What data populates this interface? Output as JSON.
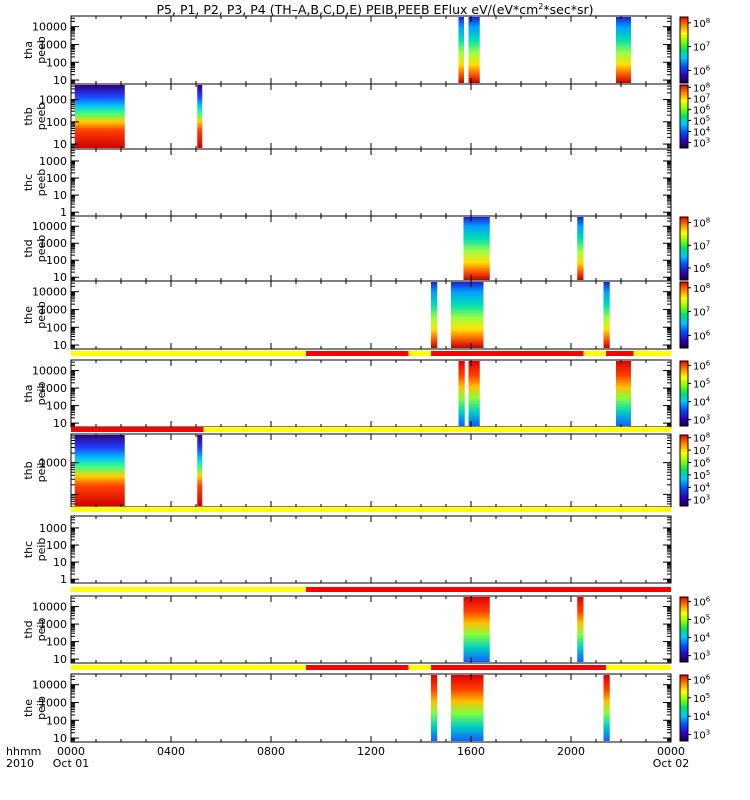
{
  "title": {
    "prefix": "P5, P1, P2, P3, P4 (TH–A,B,C,D,E) PEIB,PEEB EFlux eV/(eV*cm",
    "sup": "2",
    "suffix": "*sec*sr)"
  },
  "xaxis": {
    "left_label": "hhmm",
    "left_sub": "2010",
    "ticks": [
      "0000",
      "0400",
      "0800",
      "1200",
      "1600",
      "2000",
      "0000"
    ],
    "start_sub": "Oct 01",
    "end_sub": "Oct 02"
  },
  "colors": {
    "flag_normal": "#ffff00",
    "flag_alert": "#ff0000"
  },
  "chart_data": {
    "type": "heatmap",
    "x_unit": "hours since 2010-10-01 00:00",
    "xlim": [
      0,
      24
    ],
    "panels": [
      {
        "label1": "tha",
        "label2": "peeb",
        "yscale": "log",
        "ylim": [
          6,
          40000
        ],
        "yticks": [
          10,
          100,
          1000,
          10000
        ],
        "ytick_labels": [
          "10",
          "100",
          "1000",
          "10000"
        ],
        "colorbar": {
          "labels": [
            "10",
            "10",
            "10"
          ],
          "exps": [
            "8",
            "7",
            "6"
          ],
          "fracs": [
            0.1,
            0.45,
            0.8
          ]
        },
        "blocks": [
          [
            15.5,
            15.72,
            "e"
          ],
          [
            15.9,
            16.35,
            "e"
          ],
          [
            21.8,
            22.4,
            "e"
          ]
        ],
        "flag": null
      },
      {
        "label1": "thb",
        "label2": "peeb",
        "yscale": "log",
        "ylim": [
          6,
          5000
        ],
        "yticks": [
          10,
          100,
          1000
        ],
        "ytick_labels": [
          "10",
          "100",
          "1000"
        ],
        "colorbar": {
          "labels": [
            "10",
            "10",
            "10",
            "10",
            "10",
            "10"
          ],
          "exps": [
            "8",
            "7",
            "6",
            "5",
            "4",
            "3"
          ],
          "fracs": [
            0.05,
            0.22,
            0.39,
            0.56,
            0.73,
            0.9
          ]
        },
        "blocks": [
          [
            0.15,
            2.15,
            "b"
          ],
          [
            5.05,
            5.25,
            "b"
          ]
        ],
        "flag": null
      },
      {
        "label1": "thc",
        "label2": "peeb",
        "yscale": "log",
        "ylim": [
          0.6,
          5000
        ],
        "yticks": [
          1,
          10,
          100,
          1000
        ],
        "ytick_labels": [
          "1",
          "10",
          "100",
          "1000"
        ],
        "colorbar": null,
        "blocks": [],
        "flag": null
      },
      {
        "label1": "thd",
        "label2": "peeb",
        "yscale": "log",
        "ylim": [
          6,
          40000
        ],
        "yticks": [
          10,
          100,
          1000,
          10000
        ],
        "ytick_labels": [
          "10",
          "100",
          "1000",
          "10000"
        ],
        "colorbar": {
          "labels": [
            "10",
            "10",
            "10"
          ],
          "exps": [
            "8",
            "7",
            "6"
          ],
          "fracs": [
            0.1,
            0.45,
            0.8
          ]
        },
        "blocks": [
          [
            15.7,
            16.75,
            "e"
          ],
          [
            20.25,
            20.5,
            "e"
          ]
        ],
        "flag": null
      },
      {
        "label1": "the",
        "label2": "peeb",
        "yscale": "log",
        "ylim": [
          6,
          40000
        ],
        "yticks": [
          10,
          100,
          1000,
          10000
        ],
        "ytick_labels": [
          "10",
          "100",
          "1000",
          "10000"
        ],
        "colorbar": {
          "labels": [
            "10",
            "10",
            "10"
          ],
          "exps": [
            "8",
            "7",
            "6"
          ],
          "fracs": [
            0.1,
            0.45,
            0.8
          ]
        },
        "blocks": [
          [
            14.4,
            14.65,
            "e"
          ],
          [
            15.2,
            16.5,
            "e"
          ],
          [
            21.3,
            21.55,
            "e"
          ]
        ],
        "flag": null
      },
      {
        "label1": "tha",
        "label2": "peib",
        "yscale": "log",
        "ylim": [
          6,
          40000
        ],
        "yticks": [
          10,
          100,
          1000,
          10000
        ],
        "ytick_labels": [
          "10",
          "100",
          "1000",
          "10000"
        ],
        "colorbar": {
          "labels": [
            "10",
            "10",
            "10",
            "10"
          ],
          "exps": [
            "6",
            "5",
            "4",
            "3"
          ],
          "fracs": [
            0.08,
            0.35,
            0.62,
            0.89
          ]
        },
        "blocks": [
          [
            15.5,
            15.75,
            "i"
          ],
          [
            15.9,
            16.35,
            "i"
          ],
          [
            21.8,
            22.4,
            "i"
          ]
        ],
        "flag": [
          [
            0,
            9.4,
            "n"
          ],
          [
            9.4,
            13.5,
            "a"
          ],
          [
            13.5,
            14.4,
            "n"
          ],
          [
            14.4,
            20.5,
            "a"
          ],
          [
            20.5,
            21.4,
            "n"
          ],
          [
            21.4,
            22.5,
            "a"
          ],
          [
            22.5,
            24,
            "n"
          ]
        ]
      },
      {
        "label1": "thb",
        "label2": "peib",
        "yscale": "log",
        "ylim": [
          40,
          8000
        ],
        "yticks": [
          1000
        ],
        "ytick_labels": [
          "1000"
        ],
        "colorbar": {
          "labels": [
            "10",
            "10",
            "10",
            "10",
            "10",
            "10"
          ],
          "exps": [
            "8",
            "7",
            "6",
            "5",
            "4",
            "3"
          ],
          "fracs": [
            0.05,
            0.22,
            0.39,
            0.56,
            0.73,
            0.9
          ]
        },
        "blocks": [
          [
            0.15,
            2.15,
            "b"
          ],
          [
            5.05,
            5.25,
            "b"
          ]
        ],
        "flag": [
          [
            0,
            5.3,
            "a"
          ],
          [
            5.3,
            24,
            "n"
          ]
        ]
      },
      {
        "label1": "thc",
        "label2": "peib",
        "yscale": "log",
        "ylim": [
          0.6,
          5000
        ],
        "yticks": [
          1,
          10,
          100,
          1000
        ],
        "ytick_labels": [
          "1",
          "10",
          "100",
          "1000"
        ],
        "colorbar": null,
        "blocks": [],
        "flag": [
          [
            0,
            24,
            "n"
          ]
        ]
      },
      {
        "label1": "thd",
        "label2": "peib",
        "yscale": "log",
        "ylim": [
          6,
          40000
        ],
        "yticks": [
          10,
          100,
          1000,
          10000
        ],
        "ytick_labels": [
          "10",
          "100",
          "1000",
          "10000"
        ],
        "colorbar": {
          "labels": [
            "10",
            "10",
            "10",
            "10"
          ],
          "exps": [
            "6",
            "5",
            "4",
            "3"
          ],
          "fracs": [
            0.08,
            0.35,
            0.62,
            0.89
          ]
        },
        "blocks": [
          [
            15.7,
            16.75,
            "i"
          ],
          [
            20.25,
            20.5,
            "i"
          ]
        ],
        "flag": [
          [
            0,
            9.4,
            "n"
          ],
          [
            9.4,
            24,
            "a"
          ]
        ]
      },
      {
        "label1": "the",
        "label2": "peib",
        "yscale": "log",
        "ylim": [
          6,
          40000
        ],
        "yticks": [
          10,
          100,
          1000,
          10000
        ],
        "ytick_labels": [
          "10",
          "100",
          "1000",
          "10000"
        ],
        "colorbar": {
          "labels": [
            "10",
            "10",
            "10",
            "10"
          ],
          "exps": [
            "6",
            "5",
            "4",
            "3"
          ],
          "fracs": [
            0.08,
            0.35,
            0.62,
            0.89
          ]
        },
        "blocks": [
          [
            14.4,
            14.65,
            "i"
          ],
          [
            15.2,
            16.5,
            "i"
          ],
          [
            21.3,
            21.55,
            "i"
          ]
        ],
        "flag": [
          [
            0,
            9.4,
            "n"
          ],
          [
            9.4,
            13.5,
            "a"
          ],
          [
            13.5,
            14.4,
            "n"
          ],
          [
            14.4,
            21.4,
            "a"
          ],
          [
            21.4,
            24,
            "n"
          ]
        ]
      }
    ]
  }
}
